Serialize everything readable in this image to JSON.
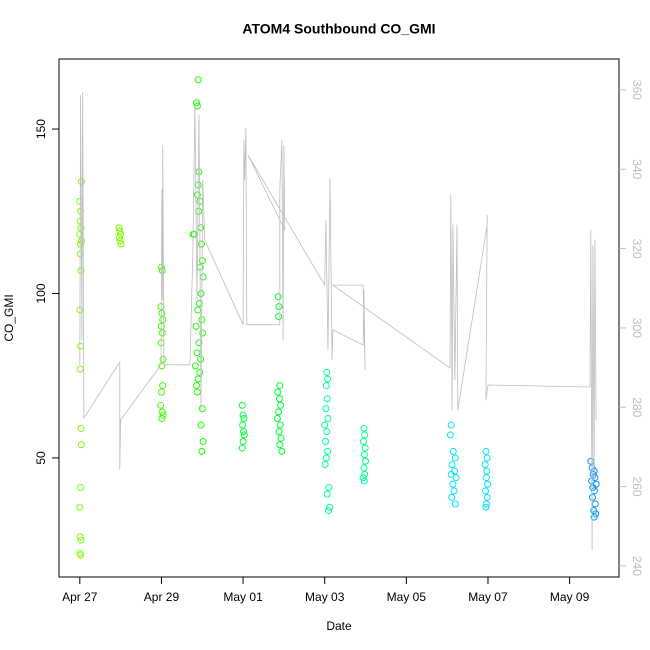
{
  "chart_data": {
    "type": "scatter",
    "title": "ATOM4 Southbound CO_GMI",
    "x_label": "Date",
    "y_label": "CO_GMI",
    "xlim": [
      -0.51,
      13.21
    ],
    "ylim": [
      13.8,
      171.3
    ],
    "y2lim": [
      237.2,
      367.8
    ],
    "xticks": [
      {
        "value": 0,
        "label": "Apr 27"
      },
      {
        "value": 2,
        "label": "Apr 29"
      },
      {
        "value": 4,
        "label": "May 01"
      },
      {
        "value": 6,
        "label": "May 03"
      },
      {
        "value": 8,
        "label": "May 05"
      },
      {
        "value": 10,
        "label": "May 07"
      },
      {
        "value": 12,
        "label": "May 09"
      }
    ],
    "yticks": [
      50,
      100,
      150
    ],
    "y2ticks": [
      240,
      260,
      280,
      300,
      320,
      340,
      360
    ],
    "series": [
      {
        "color": "#7fff00",
        "x": [
          0.0,
          0.02,
          0.01,
          0.03,
          0.0,
          0.04,
          0.02,
          0.01,
          0.03,
          0.0,
          0.02,
          0.01,
          0.03,
          0.04,
          0.02,
          0.0,
          0.01,
          0.03,
          0.0,
          0.02,
          0.04,
          0.96,
          0.98,
          1.0,
          0.97,
          0.99,
          1.01
        ],
        "values": [
          128,
          125,
          122,
          120,
          118,
          116,
          115,
          112,
          107,
          95,
          84,
          77,
          59,
          54,
          41,
          35,
          26,
          25,
          21,
          20.5,
          134,
          120,
          119,
          118,
          117,
          116,
          115
        ]
      },
      {
        "color": "#40ff00",
        "x": [
          2.0,
          2.02,
          1.99,
          2.01,
          2.03,
          2.0,
          2.02,
          1.99,
          2.04,
          2.01,
          2.03,
          2.0,
          1.98,
          2.02,
          2.04,
          2.01
        ],
        "values": [
          108,
          107,
          96,
          94,
          92,
          90,
          88,
          85,
          80,
          78,
          72,
          70,
          66,
          64,
          63,
          62
        ]
      },
      {
        "color": "#1aff00",
        "x": [
          2.9,
          2.86,
          2.88,
          2.92,
          2.9,
          2.88,
          2.94,
          2.91,
          2.96,
          2.8,
          2.98,
          3.0,
          2.95,
          3.02,
          2.97,
          2.93,
          2.89,
          2.99,
          2.85,
          3.01,
          2.92,
          2.87,
          2.96,
          2.83,
          2.94,
          2.9,
          2.86,
          2.88,
          3.0,
          2.97,
          3.02,
          2.99,
          2.78
        ],
        "values": [
          165,
          158,
          157,
          137,
          133,
          130,
          128,
          125,
          120,
          118,
          115,
          110,
          108,
          105,
          100,
          97,
          95,
          92,
          90,
          88,
          85,
          82,
          80,
          78,
          76,
          74,
          72,
          70,
          65,
          60,
          55,
          52,
          118
        ]
      },
      {
        "color": "#00ff33",
        "x": [
          3.98,
          4.0,
          4.02,
          3.99,
          4.01,
          4.03,
          4.0,
          3.98,
          4.86,
          4.88,
          4.87,
          4.9,
          4.85,
          4.89,
          4.92,
          4.87,
          4.84,
          4.91,
          4.88,
          4.93,
          4.9,
          4.95
        ],
        "values": [
          66,
          63,
          62,
          60,
          58,
          57,
          55,
          53,
          99,
          96,
          93,
          72,
          70,
          68,
          66,
          64,
          62,
          60,
          58,
          56,
          54,
          52
        ]
      },
      {
        "color": "#00ff99",
        "x": [
          6.05,
          6.07,
          6.04,
          6.06,
          6.03,
          6.08,
          6.0,
          6.05,
          6.02,
          6.07,
          6.04,
          6.01,
          6.1,
          6.06,
          6.12,
          6.09,
          6.96,
          6.98,
          6.95,
          6.99,
          6.97,
          7.0,
          6.96,
          6.98,
          6.94,
          6.97
        ],
        "values": [
          76,
          74,
          72,
          68,
          65,
          62,
          60,
          58,
          55,
          52,
          50,
          48,
          41,
          39,
          35,
          34,
          59,
          57,
          55,
          53,
          51,
          49,
          47,
          45,
          44,
          43
        ]
      },
      {
        "color": "#00e5ff",
        "x": [
          9.1,
          9.08,
          9.15,
          9.2,
          9.12,
          9.18,
          9.1,
          9.22,
          9.14,
          9.17,
          9.11,
          9.2,
          9.95,
          9.98,
          9.93,
          9.97,
          9.96,
          9.99,
          9.94,
          9.98,
          9.96,
          9.95
        ],
        "values": [
          60,
          57,
          52,
          50,
          48,
          46,
          45,
          44,
          42,
          40,
          38,
          36,
          52,
          50,
          48,
          46,
          44,
          42,
          40,
          38,
          36,
          35
        ]
      },
      {
        "color": "#0099ff",
        "x": [
          12.52,
          12.55,
          12.6,
          12.58,
          12.62,
          12.54,
          12.65,
          12.57,
          12.61,
          12.56,
          12.63,
          12.59,
          12.64,
          12.6
        ],
        "values": [
          49,
          47,
          46,
          45,
          44,
          43,
          42,
          41,
          40,
          38,
          36,
          34,
          33,
          32
        ]
      },
      {
        "color": "#bebebe",
        "type": "line",
        "axis": "y2",
        "x": [
          0,
          0.02,
          0.05,
          0.07,
          0.1,
          0.98,
          0.98,
          1.0,
          1.99,
          2.01,
          2.03,
          2.03,
          2.06,
          2.7,
          2.77,
          2.82,
          2.87,
          2.92,
          2.97,
          3.01,
          3.06,
          4.0,
          4.02,
          4.04,
          4.07,
          4.09,
          4.9,
          4.9,
          4.95,
          4.98,
          5.0,
          5.02,
          4.12,
          6.0,
          6.03,
          6.08,
          6.13,
          6.18,
          6.2,
          6.94,
          6.96,
          6.99,
          6.94,
          6.2,
          9.07,
          9.09,
          9.12,
          9.14,
          9.19,
          9.24,
          9.26,
          9.98,
          9.98,
          9.95,
          10.0,
          12.5,
          12.52,
          12.55,
          12.57,
          12.6,
          12.62,
          12.65
        ],
        "values": [
          290.7,
          358.7,
          297,
          359.5,
          277.3,
          291.4,
          264.2,
          276.8,
          290.7,
          334.8,
          307.1,
          346.1,
          290.7,
          290.7,
          319.7,
          356.2,
          307.1,
          353.7,
          279.3,
          337.3,
          322.2,
          300.8,
          347.4,
          337.3,
          350.4,
          300.8,
          300.8,
          334.8,
          347.4,
          297,
          346.1,
          324.7,
          343.6,
          310.8,
          327.2,
          294.5,
          337.8,
          291.9,
          299.5,
          295.7,
          309.6,
          289.4,
          310.8,
          310.8,
          289.9,
          333.5,
          279.3,
          326,
          286.9,
          326,
          279.3,
          326,
          328.5,
          281.8,
          285.6,
          285.1,
          324.7,
          244,
          320.9,
          261.7,
          322.2,
          276.8
        ]
      }
    ]
  }
}
